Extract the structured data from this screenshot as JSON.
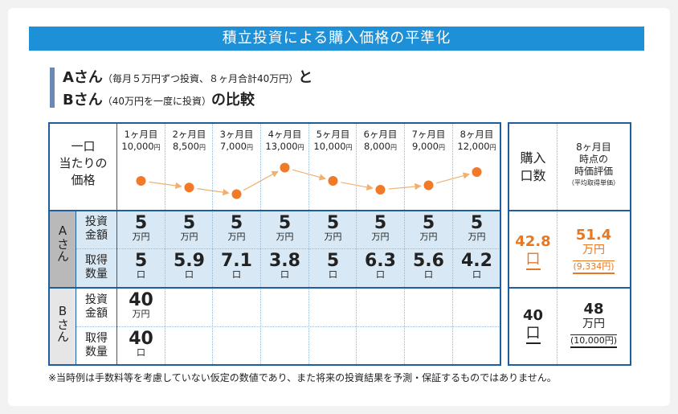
{
  "title": "積立投資による購入価格の平準化",
  "subtitle": {
    "line1_main": "Aさん",
    "line1_note": "（毎月５万円ずつ投資、８ヶ月合計40万円）",
    "line1_tail": "と",
    "line2_main": "Bさん",
    "line2_note": "（40万円を一度に投資）",
    "line2_tail": "の比較"
  },
  "header": {
    "price_label_1": "一口",
    "price_label_2": "当たりの",
    "price_label_3": "価格",
    "purchase_label_1": "購入",
    "purchase_label_2": "口数",
    "valuation_label_1": "8ヶ月目",
    "valuation_label_2": "時点の",
    "valuation_label_3": "時価評価",
    "valuation_label_4": "（平均取得単価）"
  },
  "months": [
    {
      "label": "1ヶ月目",
      "price": "10,000",
      "yen": "円"
    },
    {
      "label": "2ヶ月目",
      "price": "8,500",
      "yen": "円"
    },
    {
      "label": "3ヶ月目",
      "price": "7,000",
      "yen": "円"
    },
    {
      "label": "4ヶ月目",
      "price": "13,000",
      "yen": "円"
    },
    {
      "label": "5ヶ月目",
      "price": "10,000",
      "yen": "円"
    },
    {
      "label": "6ヶ月目",
      "price": "8,000",
      "yen": "円"
    },
    {
      "label": "7ヶ月目",
      "price": "9,000",
      "yen": "円"
    },
    {
      "label": "8ヶ月目",
      "price": "12,000",
      "yen": "円"
    }
  ],
  "price_points": [
    10000,
    8500,
    7000,
    13000,
    10000,
    8000,
    9000,
    12000
  ],
  "colors": {
    "title_bar": "#1e90d8",
    "accent_orange": "#e87722",
    "line": "#1d5f9e",
    "a_shade": "#d8e9f5"
  },
  "person_a": {
    "label": "Aさん",
    "invest_label_1": "投資",
    "invest_label_2": "金額",
    "acquire_label_1": "取得",
    "acquire_label_2": "数量",
    "invest": [
      "5",
      "5",
      "5",
      "5",
      "5",
      "5",
      "5",
      "5"
    ],
    "invest_unit": "万円",
    "acquire": [
      "5",
      "5.9",
      "7.1",
      "3.8",
      "5",
      "6.3",
      "5.6",
      "4.2"
    ],
    "acquire_unit": "口",
    "total_units": "42.8",
    "total_units_unit": "口",
    "valuation": "51.4",
    "valuation_unit": "万円",
    "avg_cost": "(9,334円)"
  },
  "person_b": {
    "label": "Bさん",
    "invest_label_1": "投資",
    "invest_label_2": "金額",
    "acquire_label_1": "取得",
    "acquire_label_2": "数量",
    "invest": "40",
    "invest_unit": "万円",
    "acquire": "40",
    "acquire_unit": "口",
    "total_units": "40",
    "total_units_unit": "口",
    "valuation": "48",
    "valuation_unit": "万円",
    "avg_cost": "(10,000円)"
  },
  "footnote": "※当時例は手数料等を考慮していない仮定の数値であり、また将来の投資結果を予測・保証するものではありません。"
}
